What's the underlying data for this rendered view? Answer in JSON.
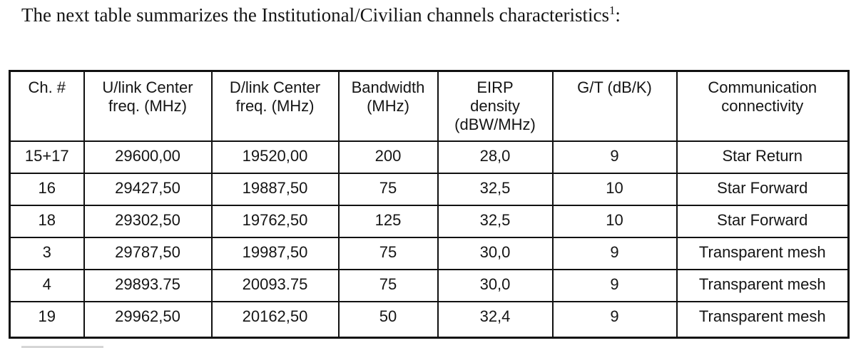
{
  "page": {
    "title": {
      "text": "The next table summarizes the Institutional/Civilian channels characteristics",
      "superscript": "1",
      "suffix": ":"
    }
  },
  "table": {
    "headers": [
      "Ch. #",
      "U/link Center\nfreq. (MHz)",
      "D/link Center\nfreq. (MHz)",
      "Bandwidth\n(MHz)",
      "EIRP\ndensity\n(dBW/MHz)",
      "G/T (dB/K)",
      "Communication\nconnectivity"
    ],
    "rows": [
      {
        "cells": [
          "15+17",
          "29600,00",
          "19520,00",
          "200",
          "28,0",
          "9",
          "Star Return"
        ]
      },
      {
        "cells": [
          "16",
          "29427,50",
          "19887,50",
          "75",
          "32,5",
          "10",
          "Star Forward"
        ]
      },
      {
        "cells": [
          "18",
          "29302,50",
          "19762,50",
          "125",
          "32,5",
          "10",
          "Star Forward"
        ]
      },
      {
        "cells": [
          "3",
          "29787,50",
          "19987,50",
          "75",
          "30,0",
          "9",
          "Transparent mesh"
        ]
      },
      {
        "cells": [
          "4",
          "29893.75",
          "20093.75",
          "75",
          "30,0",
          "9",
          "Transparent mesh"
        ]
      },
      {
        "cells": [
          "19",
          "29962,50",
          "20162,50",
          "50",
          "32,4",
          "9",
          "Transparent mesh"
        ]
      }
    ]
  },
  "colors": {
    "text": "#151515",
    "border": "#111111",
    "background": "#ffffff"
  }
}
